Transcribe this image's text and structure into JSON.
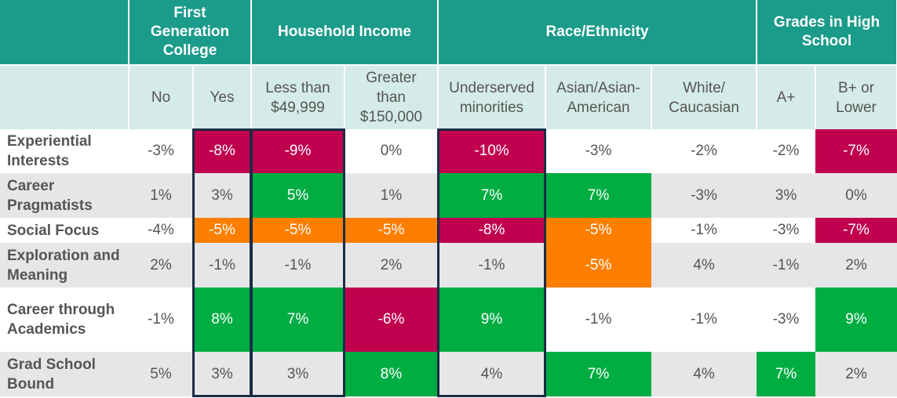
{
  "chart_data": {
    "type": "table",
    "groups": [
      {
        "label": "",
        "span": 1
      },
      {
        "label": "First Generation College",
        "span": 2
      },
      {
        "label": "Household Income",
        "span": 2
      },
      {
        "label": "Race/Ethnicity",
        "span": 3
      },
      {
        "label": "Grades in High School",
        "span": 2
      }
    ],
    "columns": [
      "No",
      "Yes",
      "Less than $49,999",
      "Greater than $150,000",
      "Underserved minorities",
      "Asian/Asian-American",
      "White/ Caucasian",
      "A+",
      "B+ or Lower"
    ],
    "rows": [
      {
        "label": "Experiential Interests",
        "values": [
          "-3%",
          "-8%",
          "-9%",
          "0%",
          "-10%",
          "-3%",
          "-2%",
          "-2%",
          "-7%"
        ],
        "colors": [
          "",
          "red",
          "red",
          "",
          "red",
          "",
          "",
          "",
          "red"
        ]
      },
      {
        "label": "Career Pragmatists",
        "values": [
          "1%",
          "3%",
          "5%",
          "1%",
          "7%",
          "7%",
          "-3%",
          "3%",
          "0%"
        ],
        "colors": [
          "",
          "",
          "green",
          "",
          "green",
          "green",
          "",
          "",
          ""
        ]
      },
      {
        "label": "Social Focus",
        "values": [
          "-4%",
          "-5%",
          "-5%",
          "-5%",
          "-8%",
          "-5%",
          "-1%",
          "-3%",
          "-7%"
        ],
        "colors": [
          "",
          "orange",
          "orange",
          "orange",
          "red",
          "orange",
          "",
          "",
          "red"
        ]
      },
      {
        "label": "Exploration and Meaning",
        "values": [
          "2%",
          "-1%",
          "-1%",
          "2%",
          "-1%",
          "-5%",
          "4%",
          "-1%",
          "2%"
        ],
        "colors": [
          "",
          "",
          "",
          "",
          "",
          "orange",
          "",
          "",
          ""
        ]
      },
      {
        "label": "Career through Academics",
        "values": [
          "-1%",
          "8%",
          "7%",
          "-6%",
          "9%",
          "-1%",
          "-1%",
          "-3%",
          "9%"
        ],
        "colors": [
          "",
          "green",
          "green",
          "red",
          "green",
          "",
          "",
          "",
          "green"
        ]
      },
      {
        "label": "Grad School Bound",
        "values": [
          "5%",
          "3%",
          "3%",
          "8%",
          "4%",
          "7%",
          "4%",
          "7%",
          "2%"
        ],
        "colors": [
          "",
          "",
          "",
          "green",
          "",
          "green",
          "",
          "green",
          ""
        ]
      }
    ],
    "highlight_colors": {
      "red": "#c0004f",
      "green": "#00ad43",
      "orange": "#fe7e00",
      "header": "#1b9b8a",
      "subheader": "#d4ebe7",
      "box_border": "#1b2d45"
    },
    "highlighted_columns": [
      "Yes",
      "Less than $49,999",
      "Underserved minorities"
    ]
  }
}
